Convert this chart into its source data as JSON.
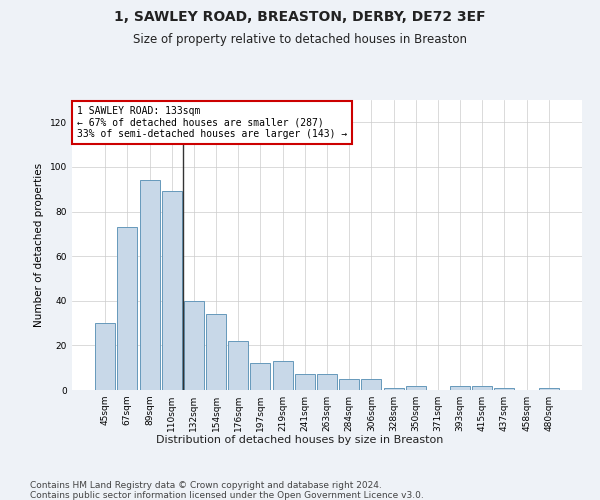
{
  "title": "1, SAWLEY ROAD, BREASTON, DERBY, DE72 3EF",
  "subtitle": "Size of property relative to detached houses in Breaston",
  "xlabel": "Distribution of detached houses by size in Breaston",
  "ylabel": "Number of detached properties",
  "categories": [
    "45sqm",
    "67sqm",
    "89sqm",
    "110sqm",
    "132sqm",
    "154sqm",
    "176sqm",
    "197sqm",
    "219sqm",
    "241sqm",
    "263sqm",
    "284sqm",
    "306sqm",
    "328sqm",
    "350sqm",
    "371sqm",
    "393sqm",
    "415sqm",
    "437sqm",
    "458sqm",
    "480sqm"
  ],
  "values": [
    30,
    73,
    94,
    89,
    40,
    34,
    22,
    12,
    13,
    7,
    7,
    5,
    5,
    1,
    2,
    0,
    2,
    2,
    1,
    0,
    1
  ],
  "bar_color": "#c8d8e8",
  "bar_edge_color": "#6699bb",
  "vline_color": "#333333",
  "annotation_text": "1 SAWLEY ROAD: 133sqm\n← 67% of detached houses are smaller (287)\n33% of semi-detached houses are larger (143) →",
  "annotation_box_color": "#ffffff",
  "annotation_box_edge": "#cc0000",
  "ylim": [
    0,
    130
  ],
  "yticks": [
    0,
    20,
    40,
    60,
    80,
    100,
    120
  ],
  "bg_color": "#eef2f7",
  "plot_bg_color": "#ffffff",
  "footer": "Contains HM Land Registry data © Crown copyright and database right 2024.\nContains public sector information licensed under the Open Government Licence v3.0.",
  "title_fontsize": 10,
  "subtitle_fontsize": 8.5,
  "xlabel_fontsize": 8,
  "ylabel_fontsize": 7.5,
  "footer_fontsize": 6.5,
  "tick_fontsize": 6.5
}
